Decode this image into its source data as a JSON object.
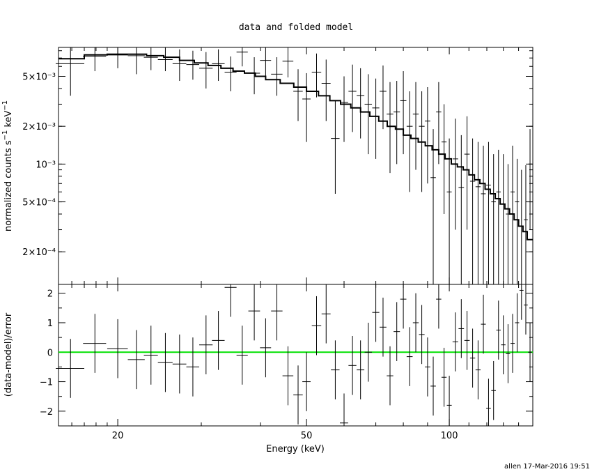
{
  "title": "data and folded model",
  "footer": "allen 17-Mar-2016 19:51",
  "colors": {
    "data": "#000000",
    "model": "#000000",
    "zero_line": "#00e000"
  },
  "chart_data": [
    {
      "panel": "upper",
      "type": "line",
      "xscale": "log",
      "yscale": "log",
      "xlim": [
        15,
        150
      ],
      "ylim": [
        0.00011,
        0.0085
      ],
      "ylabel": "normalized counts s^-1 keV^-1",
      "yticks": [
        {
          "value": 0.005,
          "label": "5×10⁻³"
        },
        {
          "value": 0.002,
          "label": "2×10⁻³"
        },
        {
          "value": 0.001,
          "label": "10⁻³"
        },
        {
          "value": 0.0005,
          "label": "5×10⁻⁴"
        },
        {
          "value": 0.0002,
          "label": "2×10⁻⁴"
        }
      ],
      "series": [
        {
          "kind": "data_points_with_errors",
          "x": [
            15.9,
            17.9,
            20.0,
            21.9,
            23.5,
            25.2,
            27.0,
            28.8,
            30.7,
            32.6,
            34.6,
            36.6,
            38.8,
            41.0,
            43.3,
            45.7,
            48.0,
            50.0,
            52.5,
            55.0,
            57.5,
            60.0,
            62.5,
            65.0,
            67.5,
            70.0,
            72.5,
            75.0,
            77.5,
            80.0,
            82.5,
            85.0,
            87.5,
            90.0,
            92.5,
            95.0,
            97.5,
            100.0,
            103.0,
            106.0,
            109.0,
            112.0,
            115.0,
            118.0,
            121.0,
            124.0,
            127.0,
            130.0,
            133.0,
            136.0,
            139.0,
            142.0,
            145.0,
            148.0
          ],
          "y": [
            0.0063,
            0.0072,
            0.0074,
            0.0073,
            0.0071,
            0.0068,
            0.0063,
            0.0062,
            0.0058,
            0.0063,
            0.0054,
            0.0078,
            0.0053,
            0.0067,
            0.0052,
            0.0066,
            0.0038,
            0.0033,
            0.0054,
            0.0044,
            0.0016,
            0.0031,
            0.0038,
            0.0035,
            0.003,
            0.0028,
            0.0038,
            0.0025,
            0.0026,
            0.0032,
            0.002,
            0.0025,
            0.002,
            0.0022,
            0.00078,
            0.0026,
            0.0015,
            0.0006,
            0.0011,
            0.00065,
            0.0012,
            0.00073,
            0.00066,
            0.00058,
            0.00068,
            0.0005,
            0.0006,
            0.00048,
            0.0004,
            0.0006,
            0.0005,
            0.00032,
            0.00036,
            0.001
          ],
          "y_low": [
            0.0035,
            0.0055,
            0.0058,
            0.0052,
            0.0056,
            0.0055,
            0.0046,
            0.0047,
            0.004,
            0.0046,
            0.0038,
            0.006,
            0.0036,
            0.005,
            0.0035,
            0.0049,
            0.0022,
            0.0015,
            0.0034,
            0.0022,
            0.00058,
            0.0015,
            0.0018,
            0.0016,
            0.0012,
            0.0011,
            0.0019,
            0.00085,
            0.001,
            0.0012,
            0.0006,
            0.0009,
            0.0006,
            0.0007,
            0.00011,
            0.001,
            0.0004,
            0.00011,
            0.0003,
            0.00011,
            0.0003,
            0.00011,
            0.00011,
            0.00011,
            0.00011,
            0.00011,
            0.00011,
            0.00011,
            0.00011,
            0.00011,
            0.00011,
            0.00011,
            0.00011,
            0.0003
          ],
          "y_high": [
            0.0085,
            0.0085,
            0.0085,
            0.0085,
            0.0085,
            0.0085,
            0.0082,
            0.008,
            0.0078,
            0.0082,
            0.0072,
            0.0085,
            0.0071,
            0.0085,
            0.0071,
            0.0085,
            0.0057,
            0.0053,
            0.0076,
            0.0068,
            0.0032,
            0.005,
            0.0062,
            0.0058,
            0.0052,
            0.0048,
            0.0061,
            0.0045,
            0.0046,
            0.0055,
            0.0038,
            0.0045,
            0.0038,
            0.0041,
            0.0019,
            0.0045,
            0.003,
            0.0016,
            0.0023,
            0.0017,
            0.0024,
            0.0016,
            0.0015,
            0.0014,
            0.0015,
            0.0012,
            0.0013,
            0.0012,
            0.001,
            0.0014,
            0.0011,
            0.0009,
            0.00098,
            0.0019
          ],
          "x_half_width": [
            1.1,
            1.0,
            1.0,
            0.9,
            0.8,
            0.9,
            0.9,
            0.9,
            1.0,
            1.0,
            1.0,
            1.0,
            1.1,
            1.1,
            1.2,
            1.2,
            1.1,
            1.0,
            1.2,
            1.2,
            1.2,
            1.2,
            1.2,
            1.2,
            1.2,
            1.2,
            1.2,
            1.2,
            1.2,
            1.2,
            1.2,
            1.2,
            1.2,
            1.2,
            1.2,
            1.2,
            1.2,
            1.2,
            1.4,
            1.4,
            1.4,
            1.4,
            1.4,
            1.4,
            1.4,
            1.4,
            1.4,
            1.4,
            1.4,
            1.4,
            1.4,
            1.4,
            1.4,
            1.4
          ]
        },
        {
          "kind": "model_step",
          "edges": [
            15,
            17,
            19,
            21,
            23,
            25,
            27,
            29,
            31,
            33,
            35,
            37,
            39,
            41,
            44,
            47,
            50,
            53,
            56,
            59,
            62,
            65,
            68,
            71,
            74,
            77,
            80,
            83,
            86,
            89,
            92,
            95,
            98,
            101,
            104,
            107,
            110,
            113,
            116,
            119,
            122,
            125,
            128,
            131,
            134,
            137,
            140,
            143,
            146,
            150
          ],
          "values": [
            0.0069,
            0.0074,
            0.0075,
            0.0075,
            0.0073,
            0.0071,
            0.0067,
            0.0064,
            0.0061,
            0.0058,
            0.0055,
            0.0053,
            0.005,
            0.0047,
            0.0044,
            0.0041,
            0.0038,
            0.0035,
            0.0032,
            0.003,
            0.0028,
            0.0026,
            0.0024,
            0.0022,
            0.002,
            0.0019,
            0.0017,
            0.0016,
            0.0015,
            0.0014,
            0.0013,
            0.0012,
            0.0011,
            0.001,
            0.00095,
            0.0009,
            0.00082,
            0.00075,
            0.0007,
            0.00063,
            0.00058,
            0.00053,
            0.00048,
            0.00044,
            0.0004,
            0.00036,
            0.00032,
            0.00029,
            0.00025
          ]
        }
      ]
    },
    {
      "panel": "lower",
      "type": "scatter",
      "xscale": "log",
      "xlim": [
        15,
        150
      ],
      "ylim": [
        -2.5,
        2.3
      ],
      "xlabel": "Energy (keV)",
      "ylabel": "(data-model)/error",
      "xticks": [
        {
          "value": 20,
          "label": "20"
        },
        {
          "value": 50,
          "label": "50"
        },
        {
          "value": 100,
          "label": "100"
        }
      ],
      "yticks": [
        {
          "value": 2,
          "label": "2"
        },
        {
          "value": 1,
          "label": "1"
        },
        {
          "value": 0,
          "label": "0"
        },
        {
          "value": -1,
          "label": "−1"
        },
        {
          "value": -2,
          "label": "−2"
        }
      ],
      "zero_line": 0,
      "series": [
        {
          "kind": "residuals",
          "x": [
            15.9,
            17.9,
            20.0,
            21.9,
            23.5,
            25.2,
            27.0,
            28.8,
            30.7,
            32.6,
            34.6,
            36.6,
            38.8,
            41.0,
            43.3,
            45.7,
            48.0,
            50.0,
            52.5,
            55.0,
            57.5,
            60.0,
            62.5,
            65.0,
            67.5,
            70.0,
            72.5,
            75.0,
            77.5,
            80.0,
            82.5,
            85.0,
            87.5,
            90.0,
            92.5,
            95.0,
            97.5,
            100.0,
            103.0,
            106.0,
            109.0,
            112.0,
            115.0,
            118.0,
            121.0,
            124.0,
            127.0,
            130.0,
            133.0,
            136.0,
            139.0,
            142.0,
            145.0,
            148.0
          ],
          "y": [
            -0.55,
            0.3,
            0.12,
            -0.25,
            -0.1,
            -0.35,
            -0.4,
            -0.5,
            0.25,
            0.4,
            2.2,
            -0.1,
            1.4,
            0.15,
            1.4,
            -0.8,
            -1.45,
            -1.0,
            0.9,
            1.3,
            -0.6,
            -2.4,
            -0.45,
            -0.6,
            0.0,
            1.35,
            0.85,
            -0.8,
            0.7,
            1.8,
            -0.15,
            1.0,
            0.6,
            -0.5,
            -1.15,
            1.8,
            -0.85,
            -1.8,
            0.35,
            0.8,
            0.4,
            -0.2,
            -0.6,
            0.95,
            -1.9,
            -1.3,
            0.75,
            0.25,
            -0.05,
            0.3,
            1.0,
            2.1,
            1.6,
            0.0
          ],
          "x_half_width": [
            1.1,
            1.0,
            1.0,
            0.9,
            0.8,
            0.9,
            0.9,
            0.9,
            1.0,
            1.0,
            1.0,
            1.0,
            1.1,
            1.1,
            1.2,
            1.2,
            1.1,
            1.0,
            1.2,
            1.2,
            1.2,
            1.2,
            1.2,
            1.2,
            1.2,
            1.2,
            1.2,
            1.2,
            1.2,
            1.2,
            1.2,
            1.2,
            1.2,
            1.2,
            1.2,
            1.2,
            1.2,
            1.2,
            1.4,
            1.4,
            1.4,
            1.4,
            1.4,
            1.4,
            1.4,
            1.4,
            1.4,
            1.4,
            1.4,
            1.4,
            1.4,
            1.4,
            1.4,
            1.4
          ]
        }
      ]
    }
  ]
}
